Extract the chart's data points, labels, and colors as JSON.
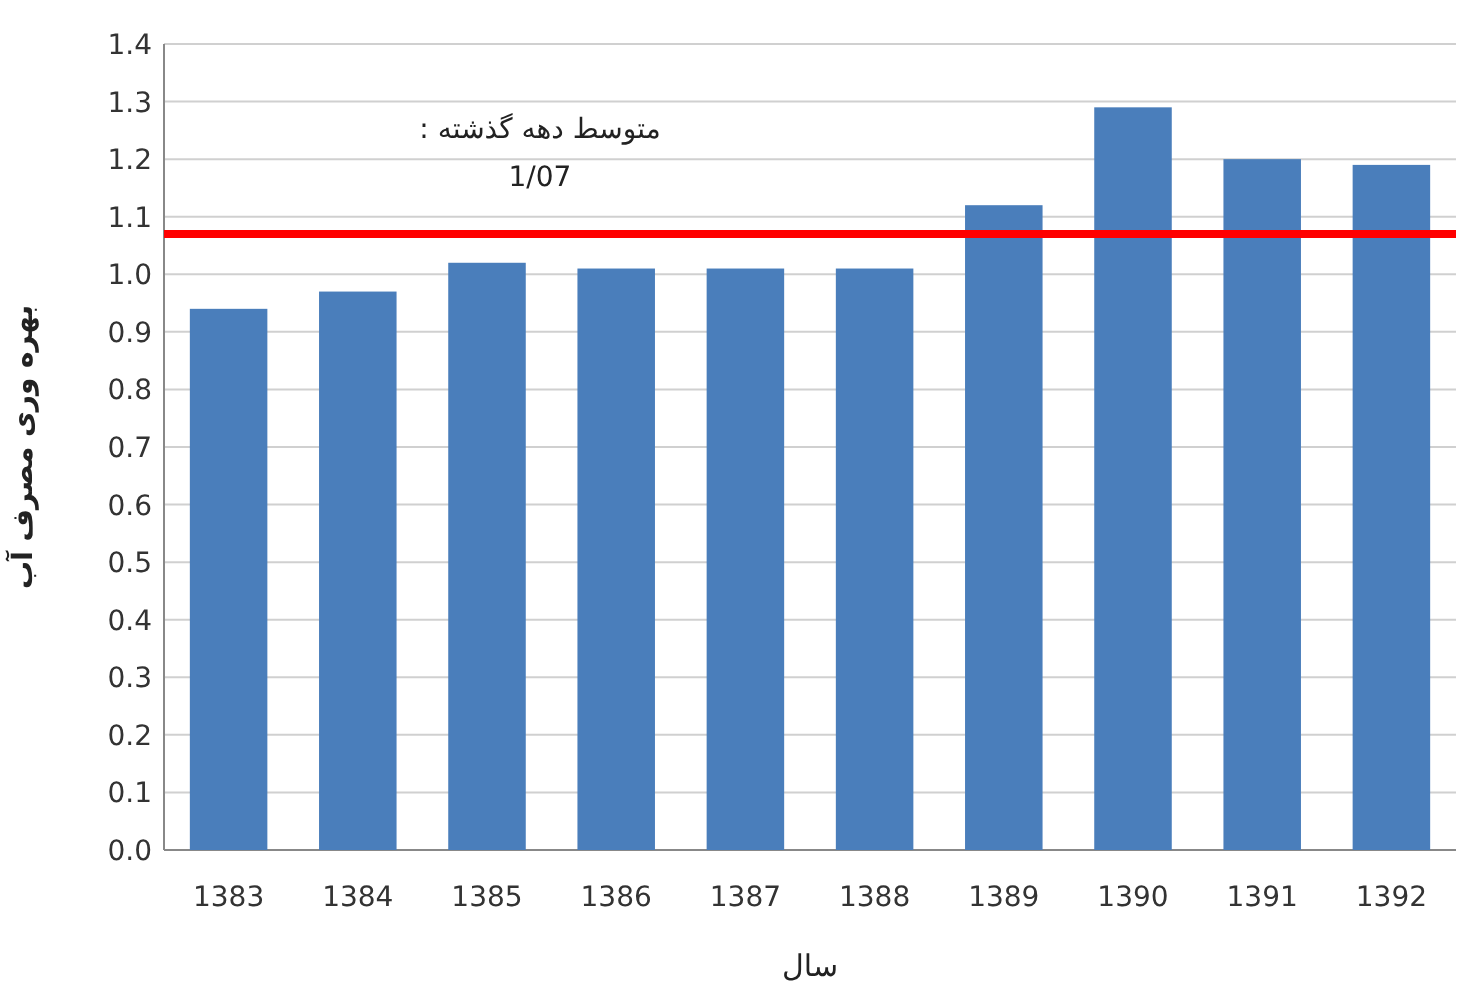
{
  "chart_data": {
    "type": "bar",
    "xlabel": "سال",
    "ylabel": "بهره وری مصرف آب",
    "categories": [
      "1383",
      "1384",
      "1385",
      "1386",
      "1387",
      "1388",
      "1389",
      "1390",
      "1391",
      "1392"
    ],
    "series": [
      {
        "color": "#4a7ebb",
        "values": [
          0.94,
          0.97,
          1.02,
          1.01,
          1.01,
          1.01,
          1.12,
          1.29,
          1.2,
          1.19
        ]
      }
    ],
    "ylim": [
      0,
      1.4
    ],
    "yticks": [
      {
        "value": 0,
        "label": "0.0"
      },
      0.1,
      0.2,
      0.3,
      0.4,
      0.5,
      0.6,
      0.7,
      0.8,
      0.9,
      {
        "value": 1,
        "label": "1.0"
      },
      1.1,
      1.2,
      1.3,
      1.4
    ],
    "grid": "y",
    "ref_lines": [
      {
        "axis": "y",
        "value": 1.07,
        "label": "متوسط دهه گذشته :\n1/07",
        "color": "#ff0000",
        "line_style": "solid"
      }
    ]
  }
}
